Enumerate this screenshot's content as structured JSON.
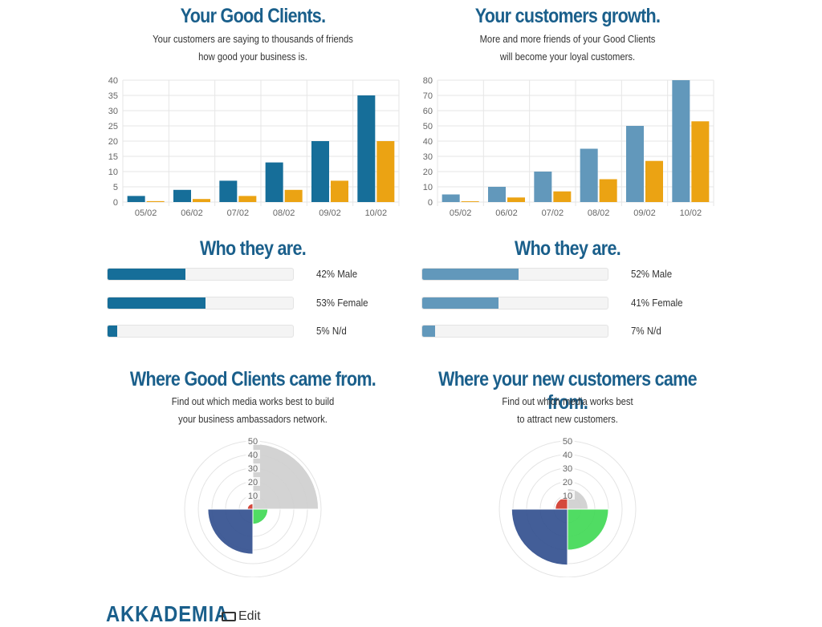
{
  "colors": {
    "title": "#1a5f8b",
    "dark_blue": "#166e99",
    "light_blue": "#6298bb",
    "orange": "#eba313",
    "polar_gray": "#cfcfcf",
    "polar_red": "#d13a2c",
    "polar_green": "#41d956",
    "polar_navy": "#33508f"
  },
  "left": {
    "title": "Your Good Clients.",
    "subtitle_line1": "Your customers are saying to thousands of friends",
    "subtitle_line2": "how good your business is.",
    "who_title": "Who they are.",
    "bars": [
      {
        "label": "42% Male",
        "value": 0.42
      },
      {
        "label": "53% Female",
        "value": 0.53
      },
      {
        "label": "5% N/d",
        "value": 0.05
      }
    ],
    "where_title": "Where Good Clients came from.",
    "where_line1": "Find out which media works best to build",
    "where_line2": "your business ambassadors network."
  },
  "right": {
    "title": "Your customers growth.",
    "subtitle_line1": "More and more friends of your Good Clients",
    "subtitle_line2": "will become your loyal customers.",
    "who_title": "Who they are.",
    "bars": [
      {
        "label": "52% Male",
        "value": 0.52
      },
      {
        "label": "41% Female",
        "value": 0.41
      },
      {
        "label": "7% N/d",
        "value": 0.07
      }
    ],
    "where_title": "Where your new customers came from.",
    "where_line1": "Find out which media works best",
    "where_line2": "to attract new customers."
  },
  "footer": {
    "logo": "AKKADEMIA",
    "edit_label": "Edit"
  },
  "chart_data": [
    {
      "type": "bar",
      "title": "Your Good Clients.",
      "categories": [
        "05/02",
        "06/02",
        "07/02",
        "08/02",
        "09/02",
        "10/02"
      ],
      "series": [
        {
          "name": "series-1",
          "values": [
            2,
            4,
            7,
            13,
            20,
            35
          ]
        },
        {
          "name": "series-2",
          "values": [
            0.3,
            1,
            2,
            4,
            7,
            20
          ]
        }
      ],
      "ylim": [
        0,
        40
      ],
      "yticks": [
        0,
        5,
        10,
        15,
        20,
        25,
        30,
        35,
        40
      ],
      "grid": true
    },
    {
      "type": "bar",
      "title": "Your customers growth.",
      "categories": [
        "05/02",
        "06/02",
        "07/02",
        "08/02",
        "09/02",
        "10/02"
      ],
      "series": [
        {
          "name": "series-1",
          "values": [
            5,
            10,
            20,
            35,
            50,
            80
          ]
        },
        {
          "name": "series-2",
          "values": [
            0.5,
            3,
            7,
            15,
            27,
            53
          ]
        }
      ],
      "ylim": [
        0,
        80
      ],
      "yticks": [
        0,
        10,
        20,
        30,
        40,
        50,
        60,
        70,
        80
      ],
      "grid": true
    },
    {
      "type": "polar-area",
      "title": "Where Good Clients came from.",
      "rlim": [
        0,
        50
      ],
      "rticks": [
        10,
        20,
        30,
        40,
        50
      ],
      "segments": [
        {
          "name": "gray",
          "value": 48
        },
        {
          "name": "green",
          "value": 11
        },
        {
          "name": "navy",
          "value": 33
        },
        {
          "name": "red",
          "value": 4
        }
      ]
    },
    {
      "type": "polar-area",
      "title": "Where your new customers came from.",
      "rlim": [
        0,
        50
      ],
      "rticks": [
        10,
        20,
        30,
        40,
        50
      ],
      "segments": [
        {
          "name": "gray",
          "value": 15
        },
        {
          "name": "green",
          "value": 30
        },
        {
          "name": "navy",
          "value": 41
        },
        {
          "name": "red",
          "value": 9
        }
      ]
    }
  ]
}
